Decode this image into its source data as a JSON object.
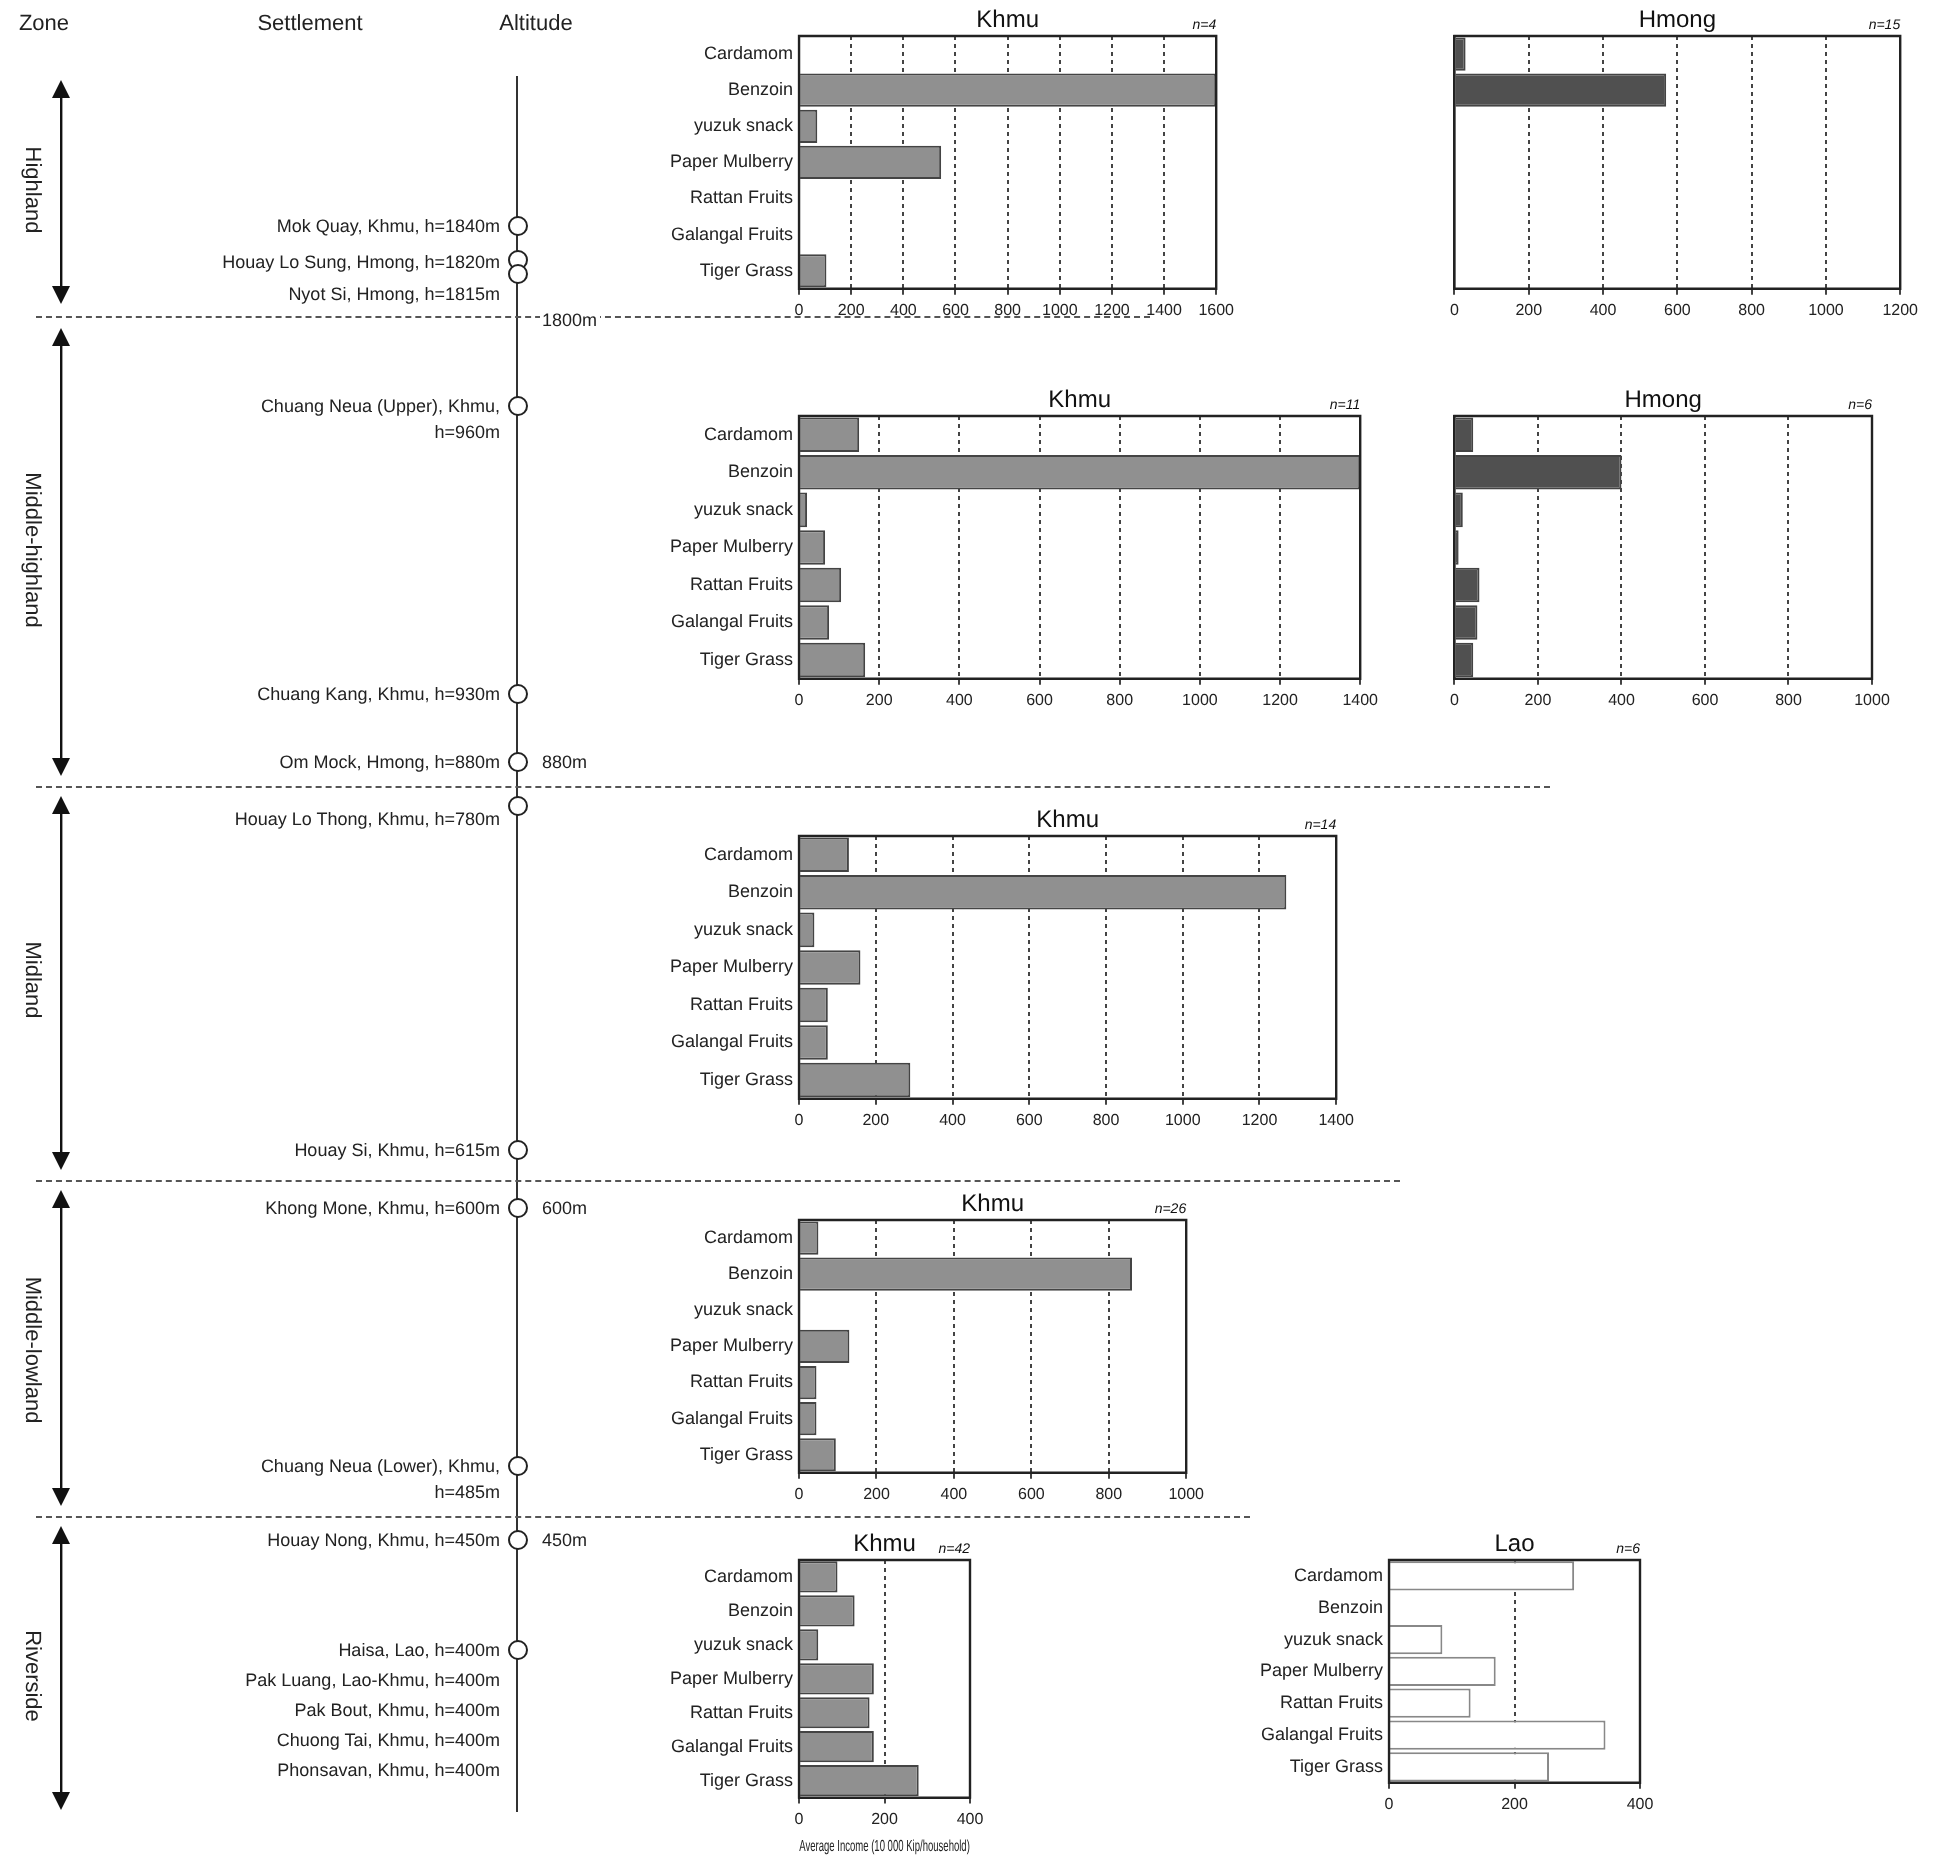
{
  "chart_data": [
    {
      "type": "other",
      "annotations": [
        "Zone",
        "Settlement",
        "Altitude",
        "Highland",
        "Middle-highland",
        "Midland",
        "Middle-lowland",
        "Riverside",
        "Mok Quay, Khmu, h=1840m",
        "Houay Lo Sung, Hmong, h=1820m",
        "Nyot Si, Hmong, h=1815m",
        "Chuang Neua (Upper), Khmu, h=960m",
        "Chuang Kang, Khmu, h=930m",
        "Om Mock, Hmong, h=880m",
        "Houay Lo Thong, Khmu, h=780m",
        "Houay Si, Khmu, h=615m",
        "Khong Mone, Khmu, h=600m",
        "Chuang Neua (Lower), Khmu, h=485m",
        "Houay Nong, Khmu, h=450m",
        "Haisa, Lao, h=400m",
        "Pak Luang, Lao-Khmu, h=400m",
        "Pak Bout, Khmu, h=400m",
        "Chuong Tai, Khmu, h=400m",
        "Phonsavan, Khmu, h=400m",
        "1800m",
        "880m",
        "600m",
        "450m"
      ]
    },
    {
      "type": "bar",
      "orientation": "horizontal",
      "title": "Khmu",
      "annotations": [
        "n=4"
      ],
      "categories": [
        "Cardamom",
        "Benzoin",
        "yuzuk snack",
        "Paper Mulberry",
        "Rattan Fruits",
        "Galangal Fruits",
        "Tiger Grass"
      ],
      "values": [
        0,
        1600,
        70,
        545,
        0,
        0,
        105
      ],
      "color": "#909090",
      "xlim": [
        0,
        1600
      ],
      "xticks": [
        0,
        200,
        400,
        600,
        800,
        1000,
        1200,
        1400,
        1600
      ],
      "grid": "x"
    },
    {
      "type": "bar",
      "orientation": "horizontal",
      "title": "Hmong",
      "annotations": [
        "n=15"
      ],
      "categories": [
        null,
        null,
        null,
        null,
        null,
        null,
        null
      ],
      "values": [
        30,
        570,
        0,
        0,
        0,
        0,
        0
      ],
      "color": "#505050",
      "xlim": [
        0,
        1200
      ],
      "xticks": [
        0,
        200,
        400,
        600,
        800,
        1000,
        1200
      ],
      "grid": "x",
      "tick_labels": "x"
    },
    {
      "type": "bar",
      "orientation": "horizontal",
      "title": "Khmu",
      "annotations": [
        "n=11"
      ],
      "categories": [
        "Cardamom",
        "Benzoin",
        "yuzuk snack",
        "Paper Mulberry",
        "Rattan Fruits",
        "Galangal Fruits",
        "Tiger Grass"
      ],
      "values": [
        150,
        1400,
        20,
        65,
        105,
        75,
        165
      ],
      "color": "#909090",
      "xlim": [
        0,
        1400
      ],
      "xticks": [
        0,
        200,
        400,
        600,
        800,
        1000,
        1200,
        1400
      ],
      "grid": "x"
    },
    {
      "type": "bar",
      "orientation": "horizontal",
      "title": "Hmong",
      "annotations": [
        "n=6"
      ],
      "categories": [
        null,
        null,
        null,
        null,
        null,
        null,
        null
      ],
      "values": [
        45,
        400,
        20,
        10,
        60,
        55,
        45
      ],
      "color": "#505050",
      "xlim": [
        0,
        1000
      ],
      "xticks": [
        0,
        200,
        400,
        600,
        800,
        1000
      ],
      "grid": "x",
      "tick_labels": "x"
    },
    {
      "type": "bar",
      "orientation": "horizontal",
      "title": "Khmu",
      "annotations": [
        "n=14"
      ],
      "categories": [
        "Cardamom",
        "Benzoin",
        "yuzuk snack",
        "Paper Mulberry",
        "Rattan Fruits",
        "Galangal Fruits",
        "Tiger Grass"
      ],
      "values": [
        130,
        1270,
        40,
        160,
        75,
        75,
        290
      ],
      "color": "#909090",
      "xlim": [
        0,
        1400
      ],
      "xticks": [
        0,
        200,
        400,
        600,
        800,
        1000,
        1200,
        1400
      ],
      "grid": "x"
    },
    {
      "type": "bar",
      "orientation": "horizontal",
      "title": "Khmu",
      "annotations": [
        "n=26"
      ],
      "categories": [
        "Cardamom",
        "Benzoin",
        "yuzuk snack",
        "Paper Mulberry",
        "Rattan Fruits",
        "Galangal Fruits",
        "Tiger Grass"
      ],
      "values": [
        50,
        860,
        0,
        130,
        45,
        45,
        95
      ],
      "color": "#909090",
      "xlim": [
        0,
        1000
      ],
      "xticks": [
        0,
        200,
        400,
        600,
        800,
        1000
      ],
      "grid": "x"
    },
    {
      "type": "bar",
      "orientation": "horizontal",
      "title": "Khmu",
      "annotations": [
        "n=42"
      ],
      "xlabel": "Average Income (10 000 Kip/household)",
      "categories": [
        "Cardamom",
        "Benzoin",
        "yuzuk snack",
        "Paper Mulberry",
        "Rattan Fruits",
        "Galangal Fruits",
        "Tiger Grass"
      ],
      "values": [
        90,
        130,
        45,
        175,
        165,
        175,
        280
      ],
      "color": "#909090",
      "xlim": [
        0,
        400
      ],
      "xticks": [
        0,
        200,
        400
      ],
      "grid": "x"
    },
    {
      "type": "bar",
      "orientation": "horizontal",
      "title": "Lao",
      "annotations": [
        "n=6"
      ],
      "categories": [
        "Cardamom",
        "Benzoin",
        "yuzuk snack",
        "Paper Mulberry",
        "Rattan Fruits",
        "Galangal Fruits",
        "Tiger Grass"
      ],
      "values": [
        295,
        0,
        85,
        170,
        130,
        345,
        255
      ],
      "color": "#ffffff",
      "xlim": [
        0,
        400
      ],
      "xticks": [
        0,
        200,
        400
      ],
      "grid": "x"
    }
  ]
}
